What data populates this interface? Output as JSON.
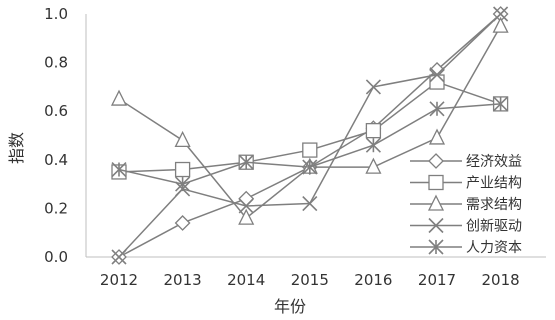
{
  "chart_data": {
    "type": "line",
    "title": "",
    "xlabel": "年份",
    "ylabel": "指数",
    "x": [
      "2012",
      "2013",
      "2014",
      "2015",
      "2016",
      "2017",
      "2018"
    ],
    "ylim": [
      0,
      1.0
    ],
    "yticks": [
      "0.0",
      "0.2",
      "0.4",
      "0.6",
      "0.8",
      "1.0"
    ],
    "grid": false,
    "legend_position": "bottom-right",
    "line_color": "#7f7f7f",
    "series": [
      {
        "name": "经济效益",
        "marker": "diamond",
        "values": [
          0.0,
          0.14,
          0.24,
          0.37,
          0.53,
          0.77,
          1.0
        ]
      },
      {
        "name": "产业结构",
        "marker": "square",
        "values": [
          0.35,
          0.36,
          0.39,
          0.44,
          0.52,
          0.72,
          0.63
        ]
      },
      {
        "name": "需求结构",
        "marker": "triangle",
        "values": [
          0.65,
          0.48,
          0.16,
          0.37,
          0.37,
          0.49,
          0.95
        ]
      },
      {
        "name": "创新驱动",
        "marker": "x",
        "values": [
          0.0,
          0.28,
          0.21,
          0.22,
          0.7,
          0.75,
          1.0
        ]
      },
      {
        "name": "人力资本",
        "marker": "star",
        "values": [
          0.36,
          0.3,
          0.39,
          0.37,
          0.46,
          0.61,
          0.63
        ]
      }
    ]
  }
}
